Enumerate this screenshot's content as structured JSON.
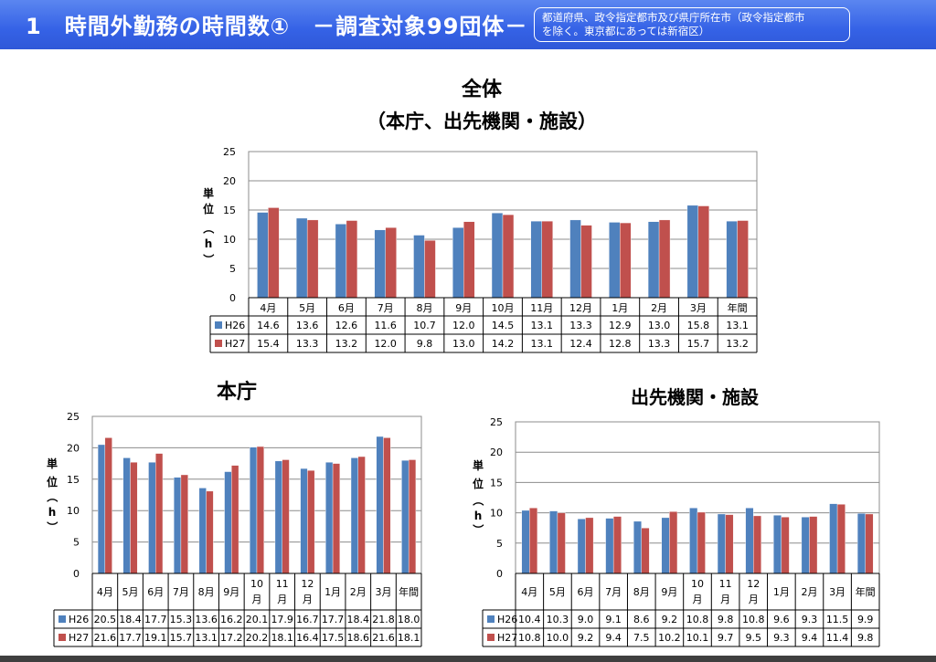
{
  "header": {
    "title": "1　時間外勤務の時間数①　－調査対象99団体－",
    "note_line1": "都道府県、政令指定都市及び県庁所在市（政令指定都市",
    "note_line2": "を除く。東京都にあっては新宿区）"
  },
  "chart_data": [
    {
      "type": "bar",
      "title": "全体",
      "subtitle": "（本庁、出先機関・施設）",
      "ylabel": "単位（h）",
      "ylim": [
        0,
        25
      ],
      "yticks": [
        0,
        5,
        10,
        15,
        20,
        25
      ],
      "grid": true,
      "categories": [
        "4月",
        "5月",
        "6月",
        "7月",
        "8月",
        "9月",
        "10月",
        "11月",
        "12月",
        "1月",
        "2月",
        "3月",
        "年間"
      ],
      "series": [
        {
          "name": "H26",
          "color": "#4f81bd",
          "values": [
            14.6,
            13.6,
            12.6,
            11.6,
            10.7,
            12.0,
            14.5,
            13.1,
            13.3,
            12.9,
            13.0,
            15.8,
            13.1
          ]
        },
        {
          "name": "H27",
          "color": "#c0504d",
          "values": [
            15.4,
            13.3,
            13.2,
            12.0,
            9.8,
            13.0,
            14.2,
            13.1,
            12.4,
            12.8,
            13.3,
            15.7,
            13.2
          ]
        }
      ]
    },
    {
      "type": "bar",
      "title": "本庁",
      "ylabel": "単位（h）",
      "ylim": [
        0,
        25
      ],
      "yticks": [
        0,
        5,
        10,
        15,
        20,
        25
      ],
      "grid": true,
      "categories": [
        "4月",
        "5月",
        "6月",
        "7月",
        "8月",
        "9月",
        "10月",
        "11月",
        "12月",
        "1月",
        "2月",
        "3月",
        "年間"
      ],
      "series": [
        {
          "name": "H26",
          "color": "#4f81bd",
          "values": [
            20.5,
            18.4,
            17.7,
            15.3,
            13.6,
            16.2,
            20.1,
            17.9,
            16.7,
            17.7,
            18.4,
            21.8,
            18.0
          ]
        },
        {
          "name": "H27",
          "color": "#c0504d",
          "values": [
            21.6,
            17.7,
            19.1,
            15.7,
            13.1,
            17.2,
            20.2,
            18.1,
            16.4,
            17.5,
            18.6,
            21.6,
            18.1
          ]
        }
      ]
    },
    {
      "type": "bar",
      "title": "出先機関・施設",
      "ylabel": "単位（h）",
      "ylim": [
        0,
        25
      ],
      "yticks": [
        0,
        5,
        10,
        15,
        20,
        25
      ],
      "grid": true,
      "categories": [
        "4月",
        "5月",
        "6月",
        "7月",
        "8月",
        "9月",
        "10月",
        "11月",
        "12月",
        "1月",
        "2月",
        "3月",
        "年間"
      ],
      "series": [
        {
          "name": "H26",
          "color": "#4f81bd",
          "values": [
            10.4,
            10.3,
            9.0,
            9.1,
            8.6,
            9.2,
            10.8,
            9.8,
            10.8,
            9.6,
            9.3,
            11.5,
            9.9
          ]
        },
        {
          "name": "H27",
          "color": "#c0504d",
          "values": [
            10.8,
            10.0,
            9.2,
            9.4,
            7.5,
            10.2,
            10.1,
            9.7,
            9.5,
            9.3,
            9.4,
            11.4,
            9.8
          ]
        }
      ]
    }
  ]
}
